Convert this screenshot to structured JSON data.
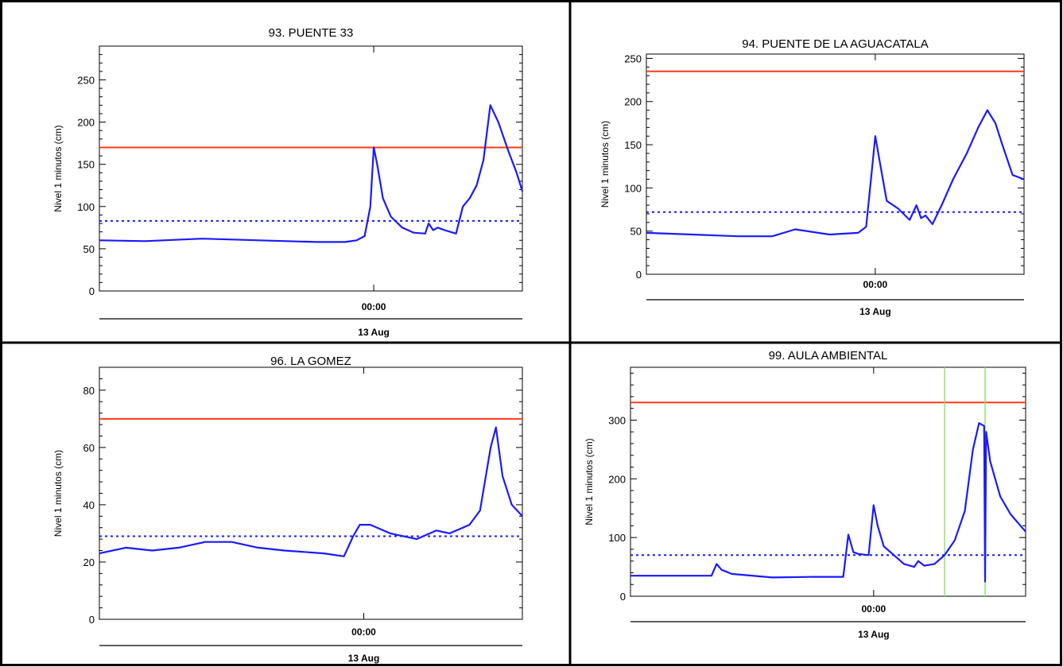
{
  "chart_data": [
    {
      "type": "line",
      "title": "93. PUENTE 33",
      "ylabel": "Nivel 1 minutos (cm)",
      "xlabel": "13 Aug",
      "x_tick_label": "00:00",
      "x_range_hours": [
        -24,
        13
      ],
      "x_tick_at_hours": 0,
      "ylim": [
        0,
        290
      ],
      "yticks": [
        0,
        50,
        100,
        150,
        200,
        250
      ],
      "red_threshold": 170,
      "blue_threshold": 83,
      "green_markers_hours": [],
      "series": [
        {
          "color": "#1a1aff",
          "x": [
            -24,
            -20,
            -15,
            -10,
            -5,
            -2.5,
            -1.5,
            -0.8,
            -0.3,
            0,
            0.3,
            0.8,
            1.5,
            2.5,
            3.5,
            4.5,
            4.8,
            5.2,
            5.6,
            6.2,
            7.2,
            7.8,
            8.4,
            9,
            9.6,
            10.2,
            10.9,
            11.8,
            12.5,
            13
          ],
          "y": [
            60,
            59,
            62,
            60,
            58,
            58,
            60,
            65,
            100,
            170,
            150,
            110,
            88,
            75,
            69,
            68,
            80,
            72,
            75,
            72,
            68,
            100,
            110,
            125,
            155,
            220,
            200,
            165,
            140,
            118
          ]
        }
      ]
    },
    {
      "type": "line",
      "title": "94. PUENTE DE LA AGUACATALA",
      "ylabel": "Nivel 1 minutos (cm)",
      "xlabel": "13 Aug",
      "x_tick_label": "00:00",
      "x_range_hours": [
        -20,
        13
      ],
      "x_tick_at_hours": 0,
      "ylim": [
        0,
        255
      ],
      "yticks": [
        0,
        50,
        100,
        150,
        200,
        250
      ],
      "red_threshold": 235,
      "blue_threshold": 72,
      "green_markers_hours": [],
      "series": [
        {
          "color": "#1a1aff",
          "x": [
            -20,
            -16,
            -12,
            -9,
            -7,
            -4,
            -1.5,
            -0.8,
            -0.3,
            0,
            0.4,
            1,
            2,
            3,
            3.6,
            4,
            4.4,
            5,
            5.8,
            6.8,
            8,
            9,
            9.8,
            10.5,
            11.1,
            12,
            13
          ],
          "y": [
            48,
            46,
            44,
            44,
            52,
            46,
            48,
            55,
            120,
            160,
            130,
            85,
            76,
            63,
            80,
            65,
            68,
            58,
            80,
            110,
            140,
            170,
            190,
            175,
            150,
            115,
            110
          ]
        }
      ]
    },
    {
      "type": "line",
      "title": "96. LA GOMEZ",
      "ylabel": "Nivel 1 minutos (cm)",
      "xlabel": "13 Aug",
      "x_tick_label": "00:00",
      "x_range_hours": [
        -20,
        12
      ],
      "x_tick_at_hours": 0,
      "ylim": [
        0,
        88
      ],
      "yticks": [
        0,
        20,
        40,
        60,
        80
      ],
      "red_threshold": 70,
      "blue_threshold": 29,
      "green_markers_hours": [],
      "series": [
        {
          "color": "#1a1aff",
          "x": [
            -20,
            -18,
            -16,
            -14,
            -12,
            -10,
            -8,
            -6,
            -3,
            -1.5,
            -0.8,
            -0.3,
            0.5,
            2,
            4,
            5.5,
            6.5,
            8,
            8.8,
            9.6,
            10,
            10.5,
            11.2,
            12
          ],
          "y": [
            23,
            25,
            24,
            25,
            27,
            27,
            25,
            24,
            23,
            22,
            29,
            33,
            33,
            30,
            28,
            31,
            30,
            33,
            38,
            60,
            67,
            50,
            40,
            36
          ]
        }
      ]
    },
    {
      "type": "line",
      "title": "99. AULA AMBIENTAL",
      "ylabel": "Nivel 1 minutos (cm)",
      "xlabel": "13 Aug",
      "x_tick_label": "00:00",
      "x_range_hours": [
        -24,
        15
      ],
      "x_tick_at_hours": 0,
      "ylim": [
        0,
        390
      ],
      "yticks": [
        0,
        100,
        200,
        300
      ],
      "red_threshold": 330,
      "blue_threshold": 70,
      "green_markers_hours": [
        7,
        11
      ],
      "series": [
        {
          "color": "#1a1aff",
          "x": [
            -24,
            -16,
            -15.5,
            -15,
            -14,
            -10,
            -6,
            -3,
            -2.5,
            -2,
            -1.5,
            -0.5,
            0,
            0.4,
            1,
            2,
            3,
            4,
            4.4,
            5,
            6,
            7,
            8,
            9,
            9.8,
            10.4,
            10.9,
            11,
            11.1,
            11.5,
            12.5,
            13.5,
            15
          ],
          "y": [
            35,
            35,
            55,
            45,
            38,
            32,
            33,
            33,
            105,
            75,
            72,
            70,
            155,
            120,
            85,
            70,
            55,
            50,
            60,
            52,
            55,
            70,
            95,
            145,
            250,
            295,
            290,
            25,
            280,
            230,
            170,
            140,
            110
          ]
        }
      ]
    }
  ]
}
